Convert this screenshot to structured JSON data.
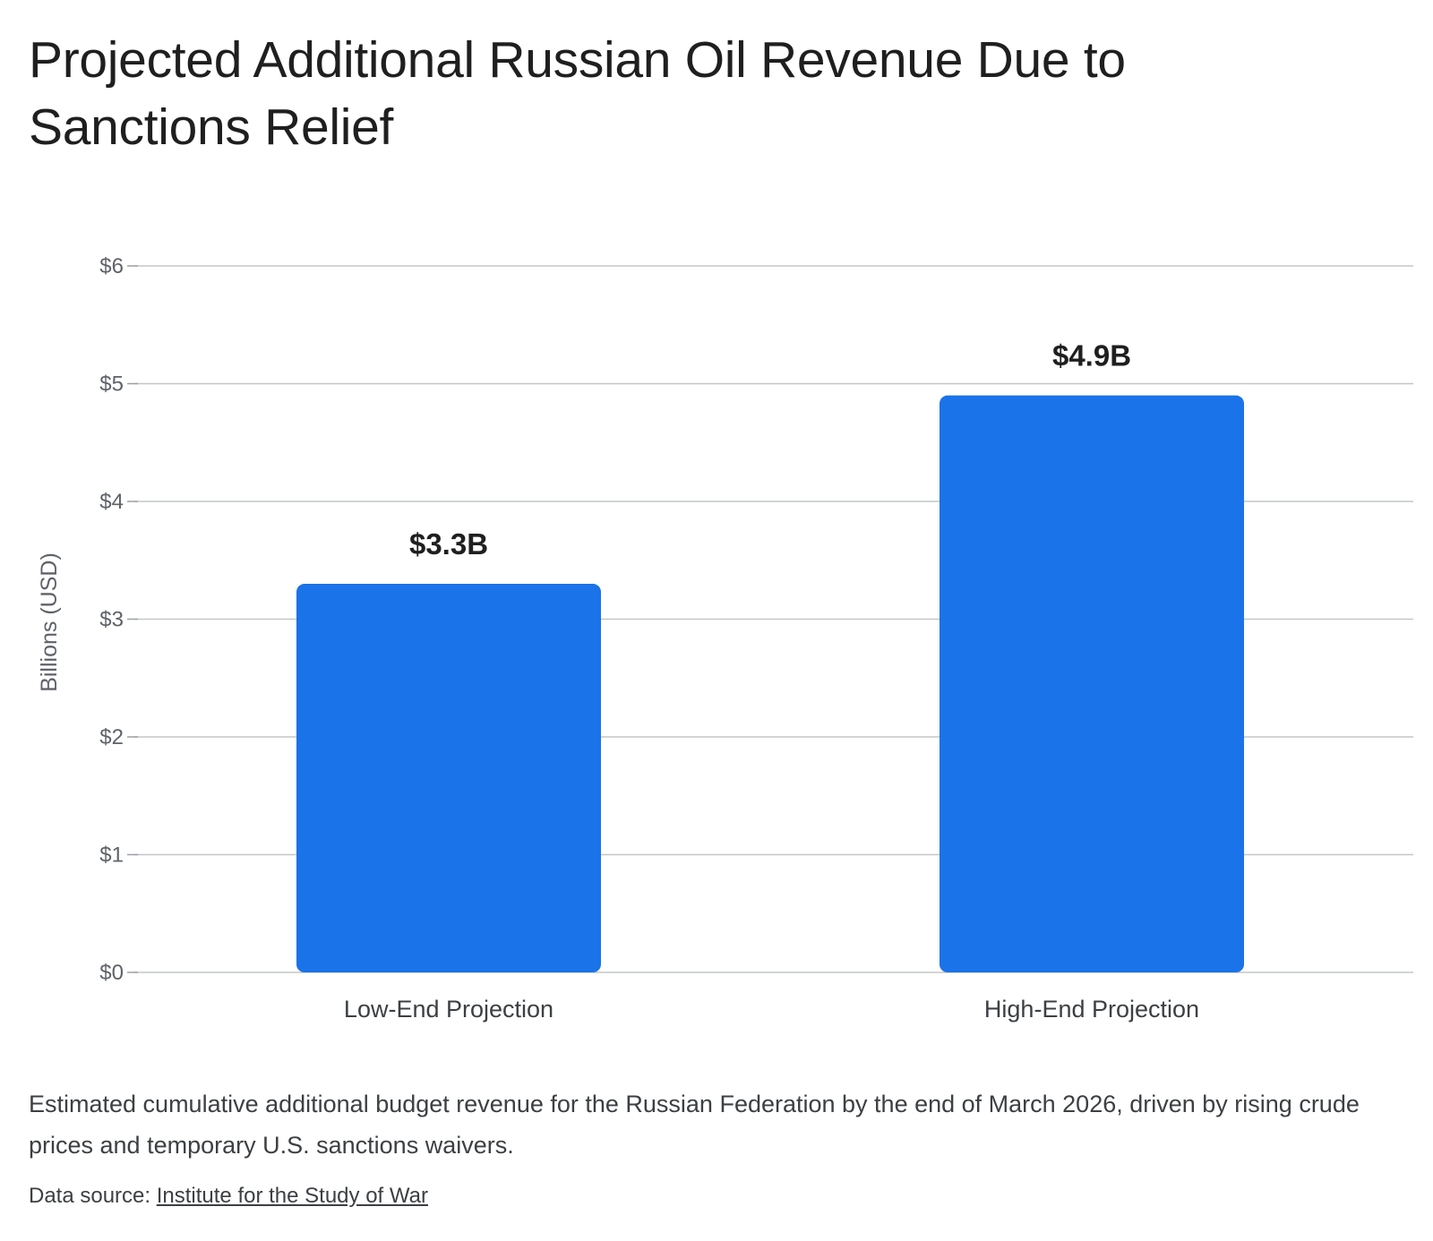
{
  "title": "Projected Additional Russian Oil Revenue Due to Sanctions Relief",
  "caption": "Estimated cumulative additional budget revenue for the Russian Federation by the end of March 2026, driven by rising crude prices and temporary U.S. sanctions waivers.",
  "source": {
    "prefix": "Data source: ",
    "link_text": "Institute for the Study of War"
  },
  "colors": {
    "bar": "#1a73e8",
    "grid": "#c4c7c5"
  },
  "chart_data": {
    "type": "bar",
    "categories": [
      "Low-End Projection",
      "High-End Projection"
    ],
    "values": [
      3.3,
      4.9
    ],
    "data_labels": [
      "$3.3B",
      "$4.9B"
    ],
    "ylabel": "Billions (USD)",
    "ylim": [
      0,
      6
    ],
    "yticks": [
      0,
      1,
      2,
      3,
      4,
      5,
      6
    ],
    "ytick_labels": [
      "$0",
      "$1",
      "$2",
      "$3",
      "$4",
      "$5",
      "$6"
    ],
    "grid": true
  }
}
